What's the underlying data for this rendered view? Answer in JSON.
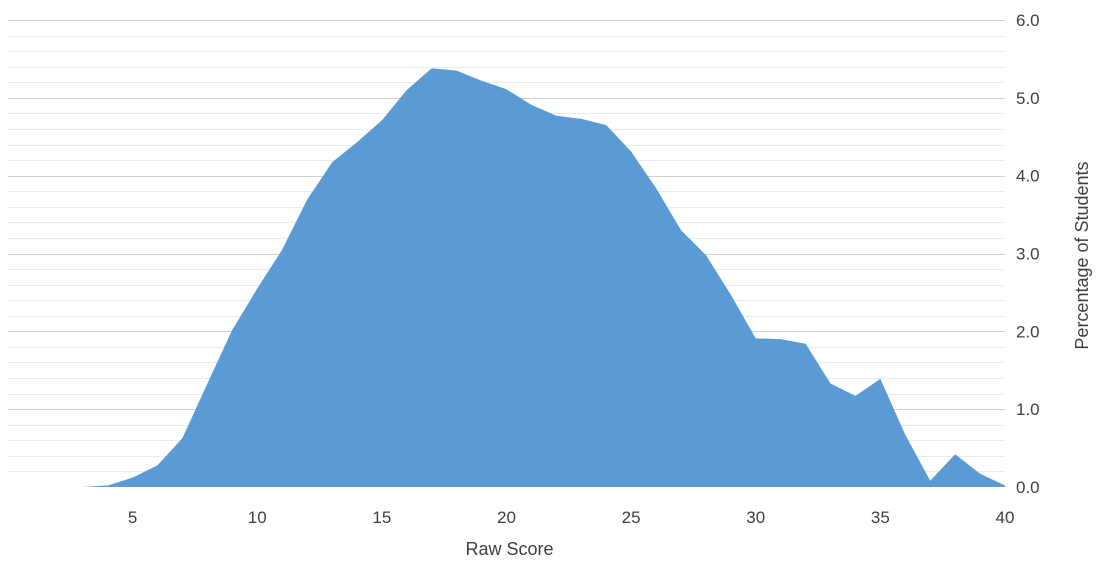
{
  "chart_data": {
    "type": "area",
    "title": "",
    "xlabel": "Raw Score",
    "ylabel": "Percentage of Students",
    "xlim": [
      0,
      40
    ],
    "ylim": [
      0,
      6
    ],
    "x_ticks": [
      "5",
      "10",
      "15",
      "20",
      "25",
      "30",
      "35",
      "40"
    ],
    "y_ticks": [
      "0.0",
      "1.0",
      "2.0",
      "3.0",
      "4.0",
      "5.0",
      "6.0"
    ],
    "y_axis_position": "right",
    "grid": true,
    "minor_grid": true,
    "legend": "none",
    "color": "#5b9bd5",
    "x": [
      0,
      1,
      2,
      3,
      4,
      5,
      6,
      7,
      8,
      9,
      10,
      11,
      12,
      13,
      14,
      15,
      16,
      17,
      18,
      19,
      20,
      21,
      22,
      23,
      24,
      25,
      26,
      27,
      28,
      29,
      30,
      31,
      32,
      33,
      34,
      35,
      36,
      37,
      38,
      39,
      40
    ],
    "values": [
      0,
      0,
      0,
      0,
      0.02,
      0.12,
      0.28,
      0.63,
      1.33,
      2.02,
      2.55,
      3.05,
      3.69,
      4.17,
      4.43,
      4.71,
      5.1,
      5.38,
      5.35,
      5.22,
      5.11,
      4.91,
      4.77,
      4.73,
      4.65,
      4.31,
      3.84,
      3.3,
      2.98,
      2.47,
      1.91,
      1.9,
      1.84,
      1.33,
      1.17,
      1.39,
      0.67,
      0.08,
      0.42,
      0.17,
      0.02
    ]
  }
}
